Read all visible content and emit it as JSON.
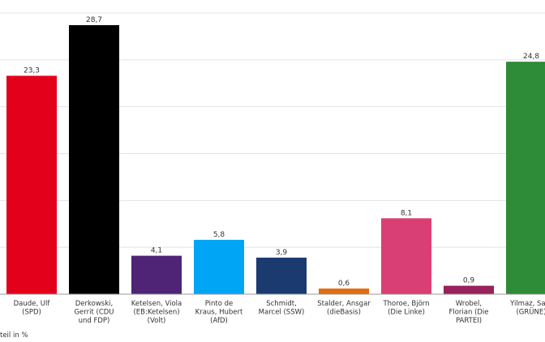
{
  "chart_data": {
    "type": "bar",
    "title": "",
    "xlabel": "",
    "ylabel": "teil in %",
    "ylim": [
      0,
      30
    ],
    "grid": true,
    "categories": [
      [
        "Daude, Ulf",
        "(SPD)"
      ],
      [
        "Derkowski,",
        "Gerrit (CDU",
        "und FDP)"
      ],
      [
        "Ketelsen, Viola",
        "(EB:Ketelsen)",
        "(Volt)"
      ],
      [
        "Pinto de",
        "Kraus, Hubert",
        "(AfD)"
      ],
      [
        "Schmidt,",
        "Marcel (SSW)"
      ],
      [
        "Stalder, Ansgar",
        "(dieBasis)"
      ],
      [
        "Thoroe, Björn",
        "(Die Linke)"
      ],
      [
        "Wrobel,",
        "Florian (Die",
        "PARTEI)"
      ],
      [
        "Yilmaz, Sam",
        "(GRÜNE)"
      ]
    ],
    "values": [
      23.3,
      28.7,
      4.1,
      5.8,
      3.9,
      0.6,
      8.1,
      0.9,
      24.8
    ],
    "value_labels": [
      "23,3",
      "28,7",
      "4,1",
      "5,8",
      "3,9",
      "0,6",
      "8,1",
      "0,9",
      "24,8"
    ],
    "colors": [
      "#e2001a",
      "#000000",
      "#4f2477",
      "#00a6f5",
      "#1b3a70",
      "#e36b0e",
      "#d93f74",
      "#99215c",
      "#2e8b38"
    ]
  }
}
